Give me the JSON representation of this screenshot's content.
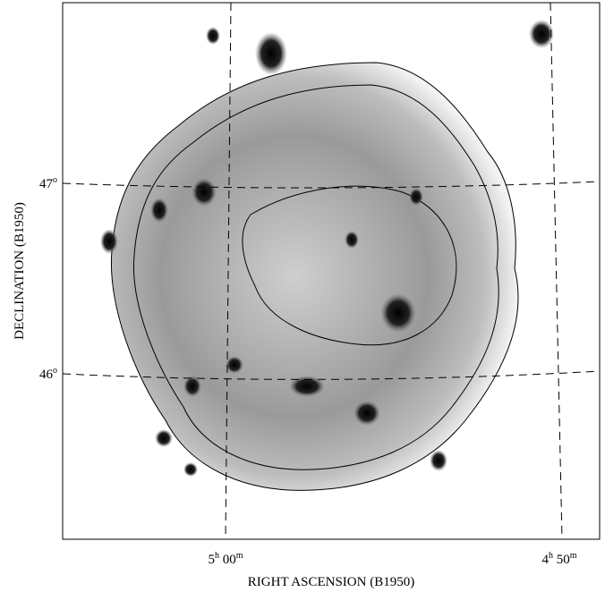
{
  "axes": {
    "x_title": "RIGHT ASCENSION (B1950)",
    "y_title": "DECLINATION (B1950)",
    "x_ticks": [
      [
        "5",
        "h",
        " 00",
        "m"
      ],
      [
        "4",
        "h",
        " 50",
        "m"
      ]
    ],
    "y_ticks": [
      [
        "47",
        "o"
      ],
      [
        "46",
        "o"
      ]
    ]
  }
}
